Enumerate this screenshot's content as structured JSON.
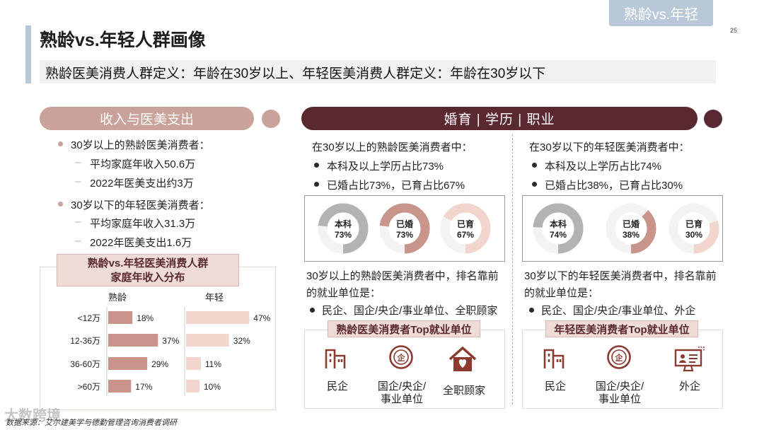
{
  "corner_tab": "熟龄vs.年轻",
  "page_number": "25",
  "title": "熟龄vs.年轻人群画像",
  "subtitle": "熟龄医美消费人群定义：年龄在30岁以上、年轻医美消费人群定义：年龄在30岁以下",
  "left_section": {
    "header": "收入与医美支出",
    "groups": [
      {
        "label": "30岁以上的熟龄医美消费者：",
        "items": [
          "平均家庭年收入50.6万",
          "2022年医美支出约3万"
        ]
      },
      {
        "label": "30岁以下的年轻医美消费者：",
        "items": [
          "平均家庭年收入31.3万",
          "2022年医美支出1.6万"
        ]
      }
    ]
  },
  "chart_data": {
    "type": "bar",
    "title": "熟龄vs.年轻医美消费人群\n家庭年收入分布",
    "title_line1": "熟龄vs.年轻医美消费人群",
    "title_line2": "家庭年收入分布",
    "categories": [
      "<12万",
      "12-36万",
      "36-60万",
      ">60万"
    ],
    "series": [
      {
        "name": "熟龄",
        "values": [
          18,
          37,
          29,
          17
        ],
        "labels": [
          "18%",
          "37%",
          "29%",
          "17%"
        ],
        "color": "#c9958b"
      },
      {
        "name": "年轻",
        "values": [
          47,
          32,
          11,
          10
        ],
        "labels": [
          "47%",
          "32%",
          "11%",
          "10%"
        ],
        "color": "#f2d6ce"
      }
    ],
    "xlim": [
      0,
      50
    ]
  },
  "right_section": {
    "header": "婚育 | 学历 | 职业",
    "mature": {
      "intro": "在30岁以上的熟龄医美消费者中：",
      "bullets": [
        "本科及以上学历占比73%",
        "已婚占比73%，已育占比67%"
      ],
      "donuts": [
        {
          "label": "本科",
          "value_text": "73%",
          "value": 73,
          "color": "#b3b3b3"
        },
        {
          "label": "已婚",
          "value_text": "73%",
          "value": 73,
          "color": "#c9958b"
        },
        {
          "label": "已育",
          "value_text": "67%",
          "value": 67,
          "color": "#f2d6ce"
        }
      ],
      "employment_intro_line1": "30岁以上的熟龄医美消费者中，排名靠前",
      "employment_intro_line2": "的就业单位是：",
      "employment_bullet": "民企、国企/央企/事业单位、全职顾家",
      "box_title": "熟龄医美消费者Top就业单位",
      "icons": [
        {
          "icon": "building-icon",
          "label_line1": "民企",
          "label_line2": ""
        },
        {
          "icon": "state-enterprise-icon",
          "label_line1": "国企/央企/",
          "label_line2": "事业单位"
        },
        {
          "icon": "home-heart-icon",
          "label_line1": "全职顾家",
          "label_line2": ""
        }
      ]
    },
    "young": {
      "intro": "在30岁以下的年轻医美消费者中：",
      "bullets": [
        "本科及以上学历占比74%",
        "已婚占比38%，已育占比30%"
      ],
      "donuts": [
        {
          "label": "本科",
          "value_text": "74%",
          "value": 74,
          "color": "#b3b3b3"
        },
        {
          "label": "已婚",
          "value_text": "38%",
          "value": 38,
          "color": "#c9958b"
        },
        {
          "label": "已育",
          "value_text": "30%",
          "value": 30,
          "color": "#f2d6ce"
        }
      ],
      "employment_intro_line1": "30岁以下的年轻医美消费者中，排名靠前",
      "employment_intro_line2": "的就业单位是：",
      "employment_bullet": "民企、国企/央企/事业单位、外企",
      "box_title": "年轻医美消费者Top就业单位",
      "icons": [
        {
          "icon": "building-icon",
          "label_line1": "民企",
          "label_line2": ""
        },
        {
          "icon": "state-enterprise-icon",
          "label_line1": "国企/央企/",
          "label_line2": "事业单位"
        },
        {
          "icon": "monitor-icon",
          "label_line1": "外企",
          "label_line2": ""
        }
      ]
    }
  },
  "footer": "数据来源：艾尔建美学与德勤管理咨询消费者调研",
  "watermark": "大数跨境",
  "colors": {
    "accent_pink": "#c9a29a",
    "accent_dark": "#5a2930",
    "accent_blue": "#b8c8d8"
  }
}
